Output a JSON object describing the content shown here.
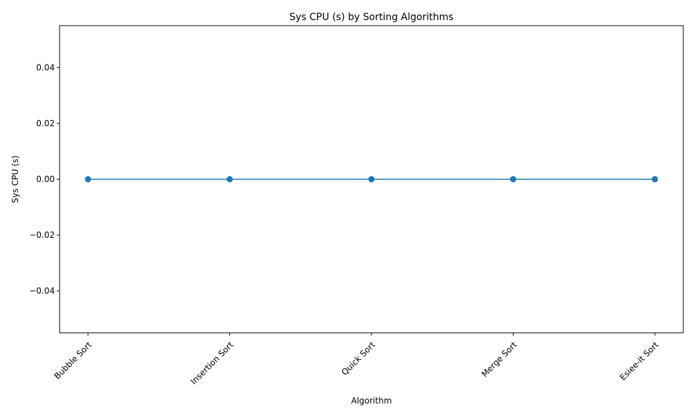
{
  "chart_data": {
    "type": "line",
    "title": "Sys CPU (s) by Sorting Algorithms",
    "xlabel": "Algorithm",
    "ylabel": "Sys CPU (s)",
    "categories": [
      "Bubble Sort",
      "Insertion Sort",
      "Quick Sort",
      "Merge Sort",
      "Esiee-it Sort"
    ],
    "series": [
      {
        "values": [
          0,
          0,
          0,
          0,
          0
        ],
        "color": "#1f77b4",
        "marker": "circle"
      }
    ],
    "ylim": [
      -0.055,
      0.055
    ],
    "yticks": [
      "−0.04",
      "−0.02",
      "0.00",
      "0.02",
      "0.04"
    ],
    "ytick_values": [
      -0.04,
      -0.02,
      0,
      0.02,
      0.04
    ],
    "xtick_rotation_deg": 45,
    "grid": false,
    "legend": "none"
  }
}
